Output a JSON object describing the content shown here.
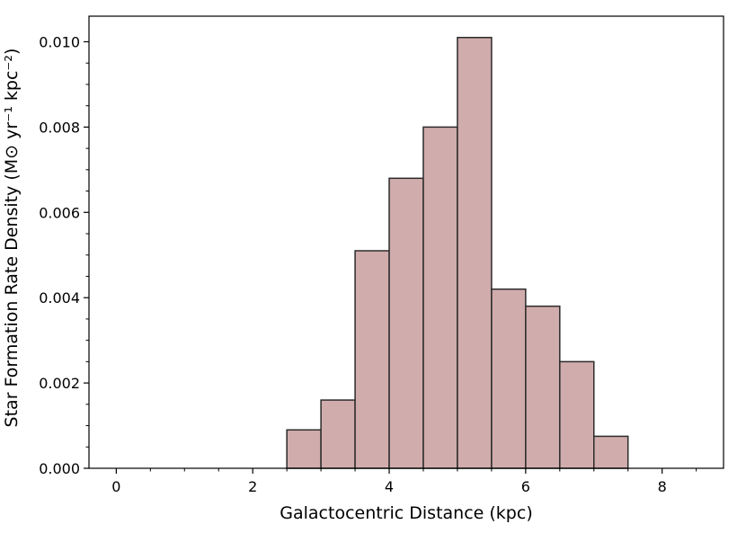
{
  "chart_data": {
    "type": "bar",
    "title": "",
    "xlabel": "Galactocentric Distance (kpc)",
    "ylabel": "Star Formation Rate Density (M⊙ yr⁻¹ kpc⁻²)",
    "xlim": [
      -0.4,
      8.9
    ],
    "ylim": [
      0,
      0.0106
    ],
    "x_ticks": [
      0,
      2,
      4,
      6,
      8
    ],
    "x_tick_labels": [
      "0",
      "2",
      "4",
      "6",
      "8"
    ],
    "y_ticks": [
      0,
      0.002,
      0.004,
      0.006,
      0.008,
      0.01
    ],
    "y_tick_labels": [
      "0.000",
      "0.002",
      "0.004",
      "0.006",
      "0.008",
      "0.010"
    ],
    "bin_width": 0.5,
    "bin_edges": [
      2.5,
      3.0,
      3.5,
      4.0,
      4.5,
      5.0,
      5.5,
      6.0,
      6.5,
      7.0,
      7.5
    ],
    "values": [
      0.0009,
      0.0016,
      0.0051,
      0.0068,
      0.008,
      0.0101,
      0.0042,
      0.0038,
      0.0025,
      0.00075
    ],
    "bar_color": "#d1acac",
    "edge_color": "#2b2b2b",
    "grid": false
  }
}
